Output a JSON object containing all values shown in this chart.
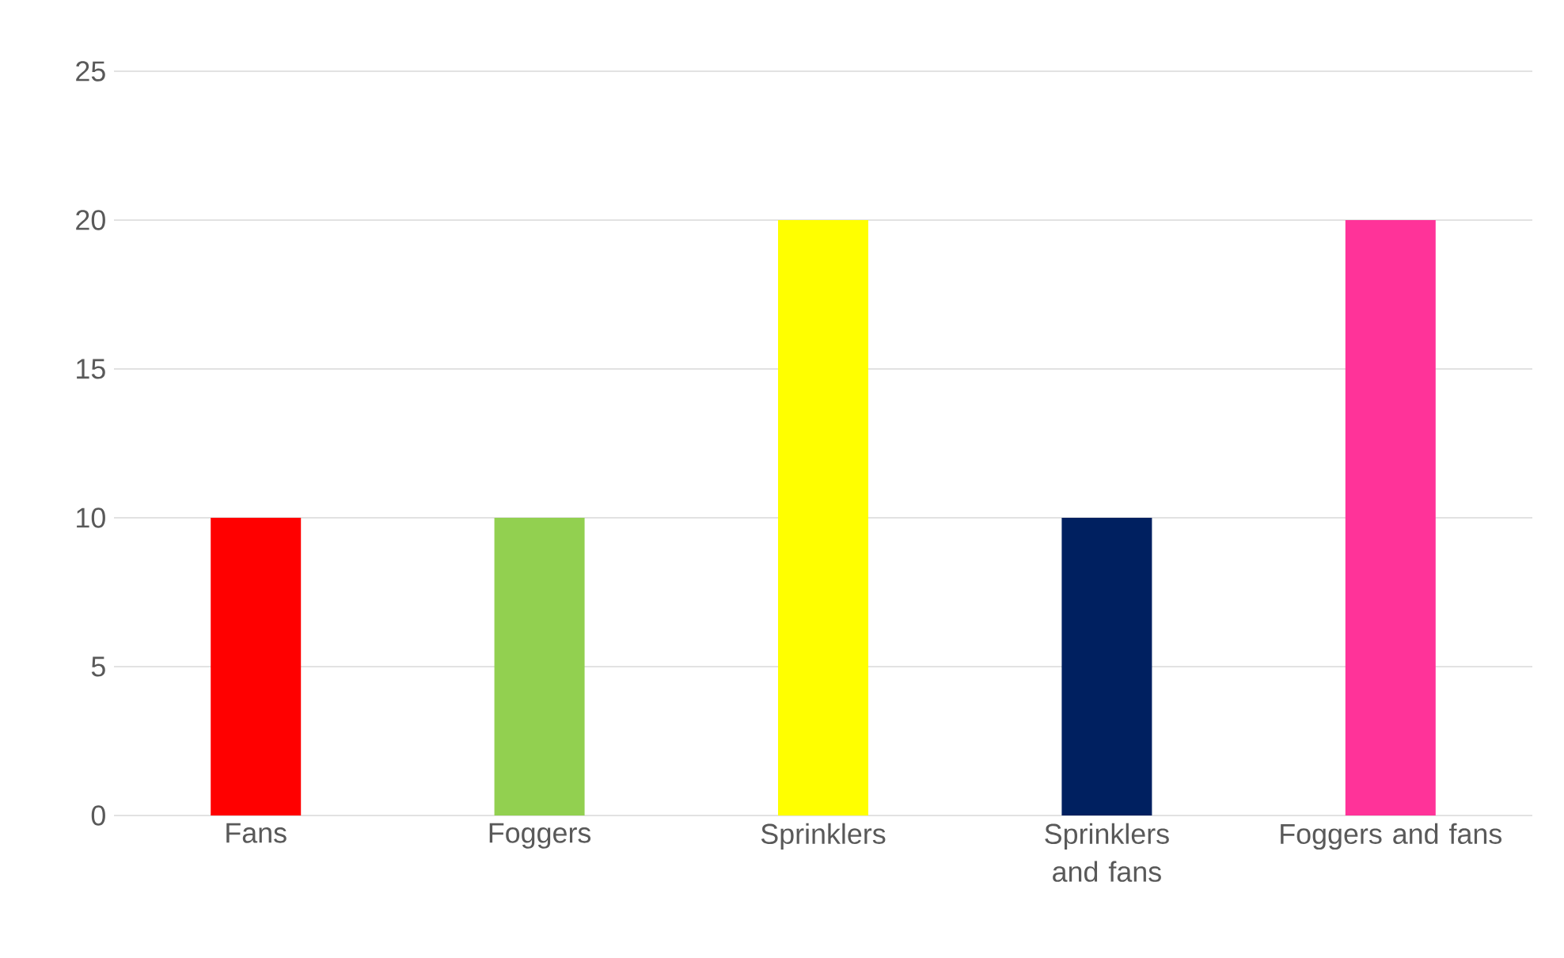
{
  "chart_data": {
    "type": "bar",
    "categories": [
      "Fans",
      "Foggers",
      "Sprinklers",
      "Sprinklers and fans",
      "Foggers and fans"
    ],
    "values": [
      10,
      10,
      20,
      10,
      20
    ],
    "colors": [
      "#ff0000",
      "#92d050",
      "#ffff00",
      "#002060",
      "#ff3399"
    ],
    "ylim": [
      0,
      25
    ],
    "yticks": [
      0,
      5,
      10,
      15,
      20,
      25
    ],
    "grid": "y"
  }
}
